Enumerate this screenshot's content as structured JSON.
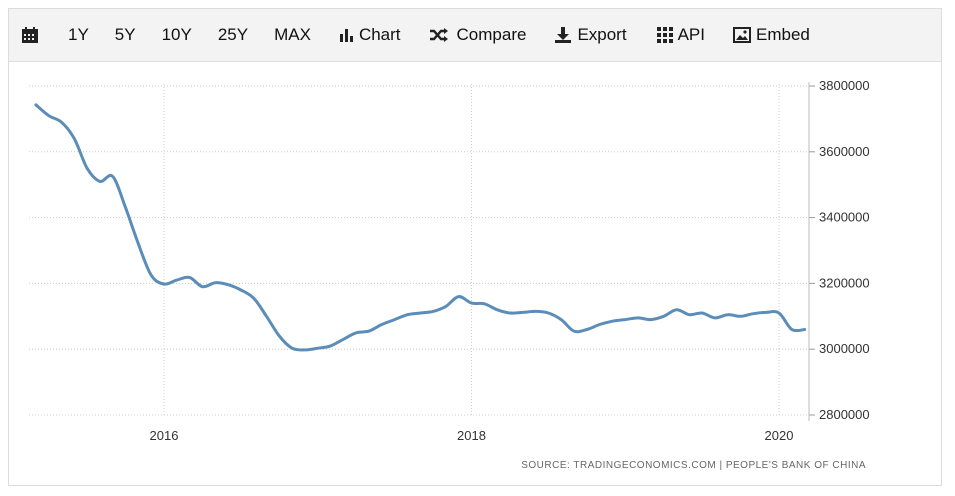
{
  "toolbar": {
    "items": [
      {
        "label": "",
        "icon": "calendar-icon"
      },
      {
        "label": "1Y"
      },
      {
        "label": "5Y"
      },
      {
        "label": "10Y"
      },
      {
        "label": "25Y"
      },
      {
        "label": "MAX"
      },
      {
        "label": "Chart",
        "icon": "bar-chart-icon"
      },
      {
        "label": "Compare",
        "icon": "shuffle-icon"
      },
      {
        "label": "Export",
        "icon": "download-icon"
      },
      {
        "label": "API",
        "icon": "grid-icon"
      },
      {
        "label": "Embed",
        "icon": "image-icon"
      }
    ]
  },
  "source": "SOURCE: TRADINGECONOMICS.COM  |  PEOPLE'S BANK OF CHINA",
  "colors": {
    "line": "#5b8db8",
    "grid": "#cccccc",
    "toolbar_bg": "#f3f3f3"
  },
  "chart_data": {
    "type": "line",
    "title": "",
    "xlabel": "",
    "ylabel": "",
    "x_ticks": [
      "2016",
      "2018",
      "2020"
    ],
    "y_ticks": [
      "2800000",
      "3000000",
      "3200000",
      "3400000",
      "3600000",
      "3800000"
    ],
    "ylim": [
      2800000,
      3800000
    ],
    "grid": true,
    "series": [
      {
        "values_x": [
          "2015-03",
          "2015-04",
          "2015-05",
          "2015-06",
          "2015-07",
          "2015-08",
          "2015-09",
          "2015-10",
          "2015-11",
          "2015-12",
          "2016-01",
          "2016-02",
          "2016-03",
          "2016-04",
          "2016-05",
          "2016-06",
          "2016-07",
          "2016-08",
          "2016-09",
          "2016-10",
          "2016-11",
          "2016-12",
          "2017-01",
          "2017-02",
          "2017-03",
          "2017-04",
          "2017-05",
          "2017-06",
          "2017-07",
          "2017-08",
          "2017-09",
          "2017-10",
          "2017-11",
          "2017-12",
          "2018-01",
          "2018-02",
          "2018-03",
          "2018-04",
          "2018-05",
          "2018-06",
          "2018-07",
          "2018-08",
          "2018-09",
          "2018-10",
          "2018-11",
          "2018-12",
          "2019-01",
          "2019-02",
          "2019-03",
          "2019-04",
          "2019-05",
          "2019-06",
          "2019-07",
          "2019-08",
          "2019-09",
          "2019-10",
          "2019-11",
          "2019-12",
          "2020-01",
          "2020-02",
          "2020-03"
        ],
        "values": [
          3743000,
          3710000,
          3690000,
          3640000,
          3550000,
          3510000,
          3525000,
          3430000,
          3320000,
          3225000,
          3198000,
          3210000,
          3218000,
          3190000,
          3202000,
          3196000,
          3180000,
          3155000,
          3100000,
          3040000,
          3003000,
          2998000,
          3003000,
          3010000,
          3030000,
          3050000,
          3055000,
          3075000,
          3090000,
          3105000,
          3110000,
          3115000,
          3130000,
          3160000,
          3140000,
          3138000,
          3120000,
          3110000,
          3112000,
          3115000,
          3110000,
          3090000,
          3055000,
          3060000,
          3075000,
          3085000,
          3090000,
          3095000,
          3090000,
          3100000,
          3120000,
          3105000,
          3110000,
          3095000,
          3105000,
          3100000,
          3108000,
          3112000,
          3110000,
          3060000,
          3060000
        ]
      }
    ]
  }
}
